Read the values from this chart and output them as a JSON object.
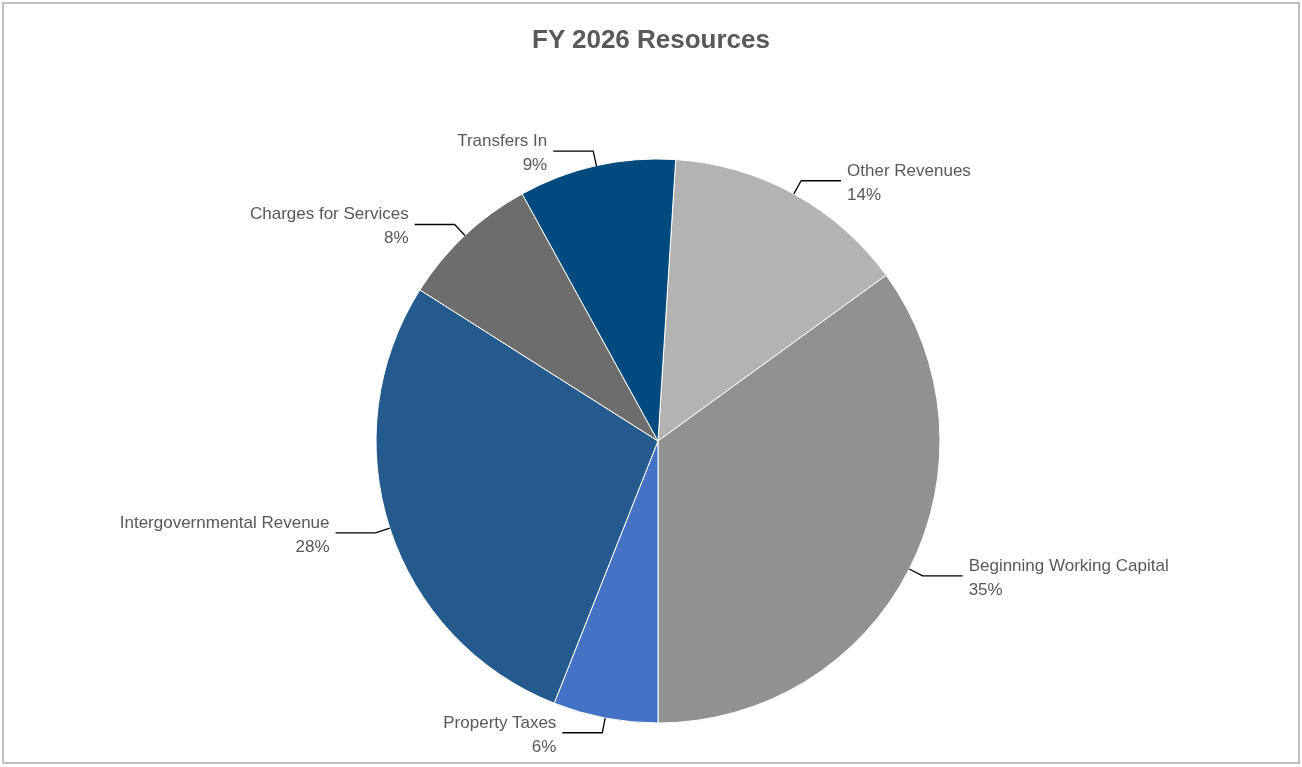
{
  "chart_data": {
    "type": "pie",
    "title": "FY 2026 Resources",
    "categories": [
      "Other Revenues",
      "Beginning Working Capital",
      "Property Taxes",
      "Intergovernmental Revenue",
      "Charges for Services",
      "Transfers In"
    ],
    "values": [
      14,
      35,
      6,
      28,
      8,
      9
    ],
    "colors": [
      "#b3b3b3",
      "#919191",
      "#4472c4",
      "#255a8e",
      "#6d6d6d",
      "#004a80"
    ],
    "value_labels": [
      "14%",
      "35%",
      "6%",
      "28%",
      "8%",
      "9%"
    ]
  }
}
